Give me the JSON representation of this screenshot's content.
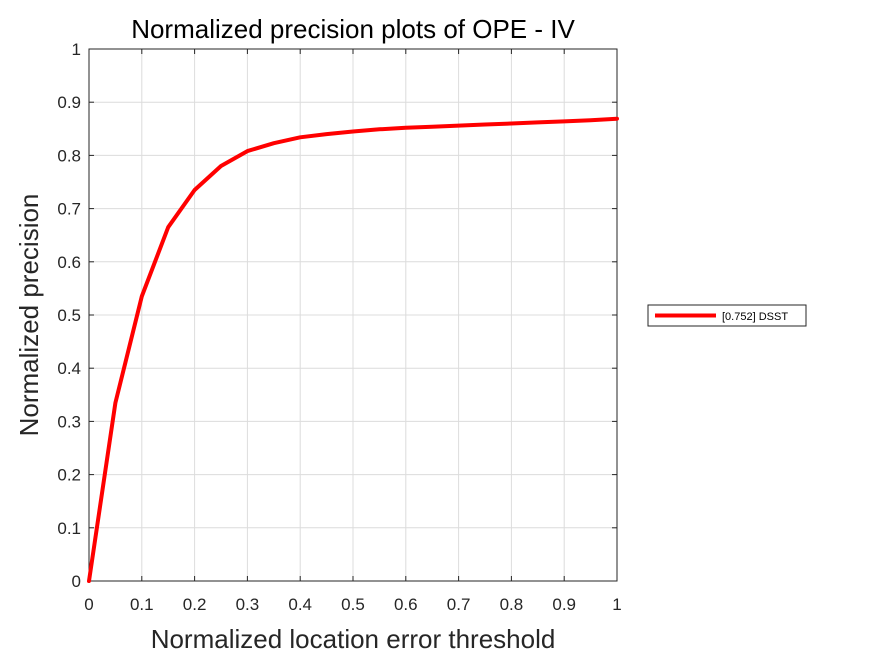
{
  "chart_data": {
    "type": "line",
    "title": "Normalized precision plots of OPE - IV",
    "xlabel": "Normalized location error threshold",
    "ylabel": "Normalized precision",
    "xlim": [
      0,
      1
    ],
    "ylim": [
      0,
      1
    ],
    "x_ticks": [
      "0",
      "0.1",
      "0.2",
      "0.3",
      "0.4",
      "0.5",
      "0.6",
      "0.7",
      "0.8",
      "0.9",
      "1"
    ],
    "y_ticks": [
      "0",
      "0.1",
      "0.2",
      "0.3",
      "0.4",
      "0.5",
      "0.6",
      "0.7",
      "0.8",
      "0.9",
      "1"
    ],
    "grid": true,
    "legend_position": "right, outside plot",
    "series": [
      {
        "name": "[0.752] DSST",
        "color": "#ff0000",
        "x": [
          0,
          0.05,
          0.1,
          0.15,
          0.2,
          0.25,
          0.3,
          0.35,
          0.4,
          0.45,
          0.5,
          0.55,
          0.6,
          0.65,
          0.7,
          0.75,
          0.8,
          0.85,
          0.9,
          0.95,
          1.0
        ],
        "y": [
          0,
          0.335,
          0.535,
          0.665,
          0.735,
          0.78,
          0.808,
          0.823,
          0.834,
          0.84,
          0.845,
          0.849,
          0.852,
          0.854,
          0.856,
          0.858,
          0.86,
          0.862,
          0.864,
          0.866,
          0.869
        ]
      }
    ]
  }
}
